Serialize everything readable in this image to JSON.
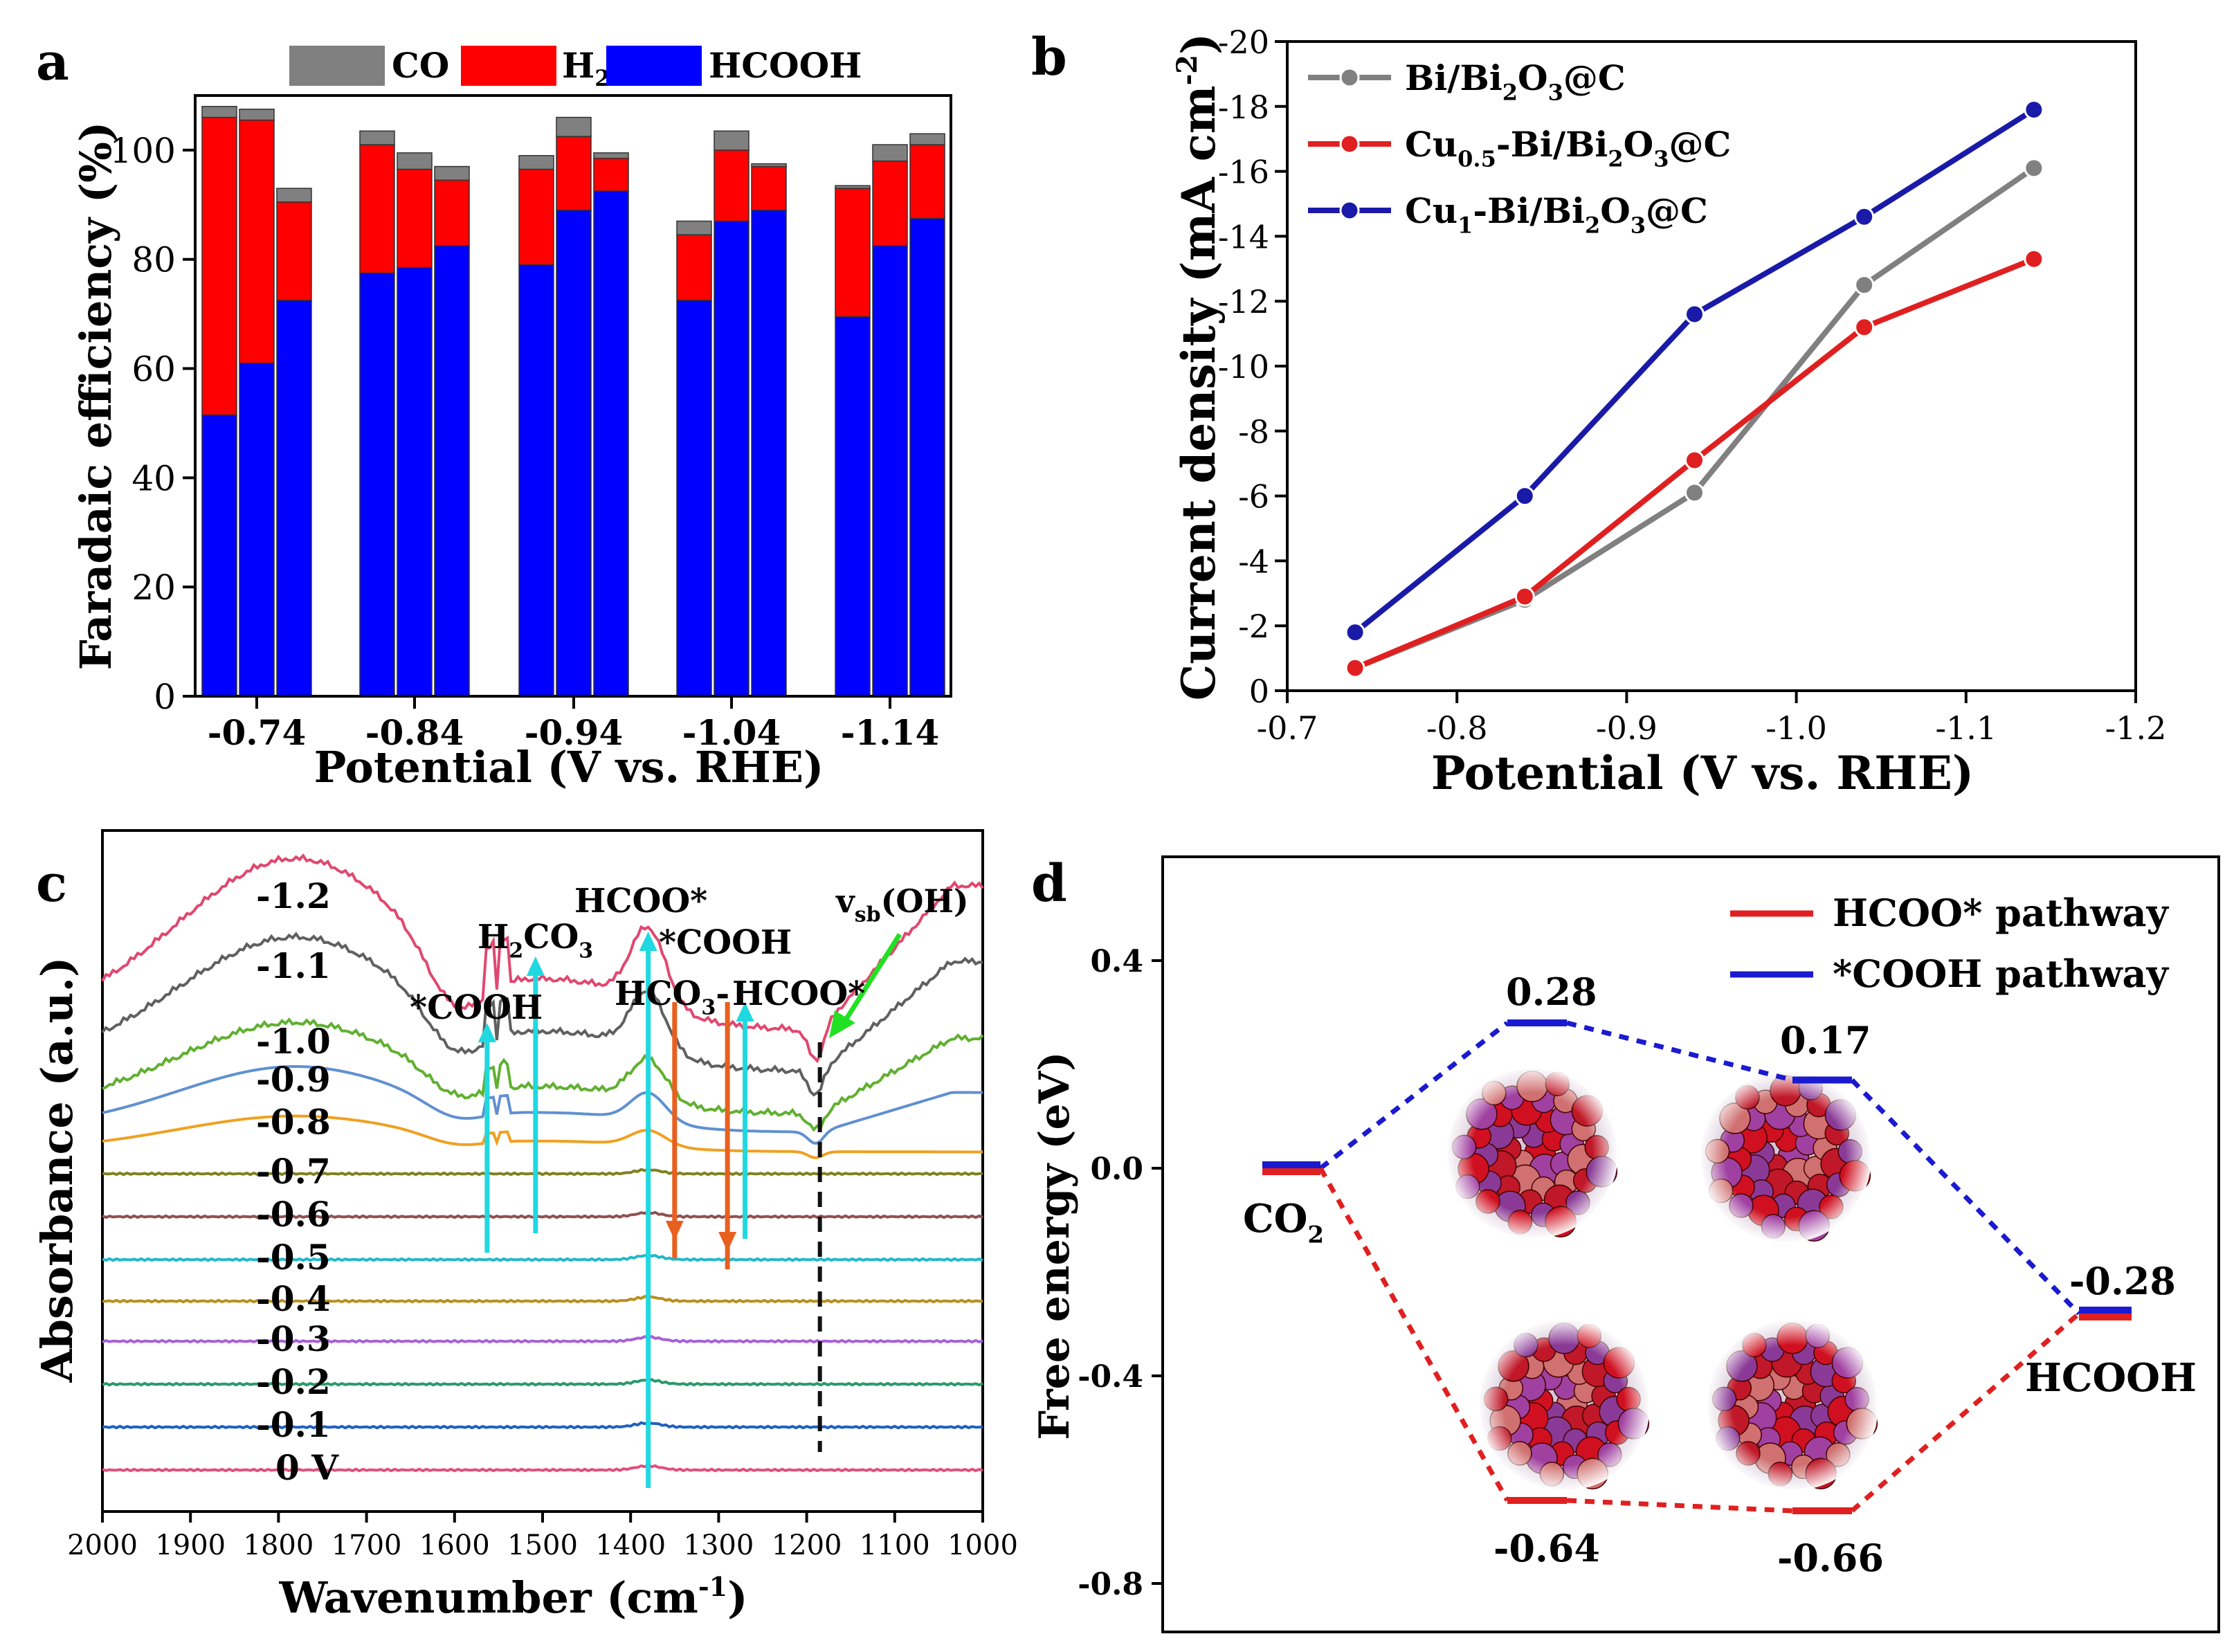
{
  "chart_data": [
    {
      "panel": "a",
      "type": "bar",
      "stacked": true,
      "ylabel": "Faradaic efficiency (%)",
      "xlabel": "Potential (V vs. RHE)",
      "ylim": [
        0,
        110
      ],
      "yticks": [
        "0",
        "20",
        "40",
        "60",
        "80",
        "100"
      ],
      "categories": [
        "-0.74",
        "-0.84",
        "-0.94",
        "-1.04",
        "-1.14"
      ],
      "bars_per_group": 3,
      "legend": {
        "placement": "top",
        "items": [
          {
            "label": "CO",
            "sub": "",
            "color": "#808080"
          },
          {
            "label": "H",
            "sub": "2",
            "color": "#ff0000"
          },
          {
            "label": "HCOOH",
            "sub": "",
            "color": "#0000ff"
          }
        ]
      },
      "series": [
        {
          "name": "HCOOH",
          "color": "#0000ff",
          "values": [
            [
              51.5,
              61,
              72.5
            ],
            [
              77.5,
              78.5,
              82.5
            ],
            [
              79,
              89,
              92.5
            ],
            [
              72.5,
              87,
              89
            ],
            [
              69.5,
              82.5,
              87.5
            ]
          ]
        },
        {
          "name": "H2",
          "color": "#ff0000",
          "values": [
            [
              54.5,
              44.5,
              18
            ],
            [
              23.5,
              18,
              12
            ],
            [
              17.5,
              13.5,
              6
            ],
            [
              12,
              13,
              8
            ],
            [
              23.5,
              15.5,
              13.5
            ]
          ]
        },
        {
          "name": "CO",
          "color": "#808080",
          "values": [
            [
              2,
              2,
              2.5
            ],
            [
              2.5,
              3,
              2.5
            ],
            [
              2.5,
              3.5,
              1
            ],
            [
              2.5,
              3.5,
              0.5
            ],
            [
              0.5,
              3,
              2
            ]
          ]
        }
      ]
    },
    {
      "panel": "b",
      "type": "line",
      "ylabel": "Current density (mA cm",
      "ylabel_sup": "-2",
      "ylabel_end": ")",
      "xlabel": "Potential (V vs. RHE)",
      "x": [
        -0.74,
        -0.84,
        -0.94,
        -1.04,
        -1.14
      ],
      "xlim": [
        -0.7,
        -1.2
      ],
      "xticks": [
        "-0.7",
        "-0.8",
        "-0.9",
        "-1.0",
        "-1.1",
        "-1.2"
      ],
      "ylim": [
        0,
        -20
      ],
      "yticks": [
        "0",
        "-2",
        "-4",
        "-6",
        "-8",
        "-10",
        "-12",
        "-14",
        "-16",
        "-18",
        "-20"
      ],
      "legend_placement": "top-left",
      "series": [
        {
          "name": [
            "Bi/Bi",
            "2",
            "O",
            "3",
            "@C"
          ],
          "color": "#808080",
          "values": [
            -0.7,
            -2.8,
            -6.1,
            -12.5,
            -16.1
          ]
        },
        {
          "name": [
            "Cu",
            "0.5",
            "-Bi/Bi",
            "2",
            "O",
            "3",
            "@C"
          ],
          "color": "#e02020",
          "values": [
            -0.7,
            -2.9,
            -7.1,
            -11.2,
            -13.3
          ]
        },
        {
          "name": [
            "Cu",
            "1",
            "-Bi/Bi",
            "2",
            "O",
            "3",
            "@C"
          ],
          "color": "#1a1aa8",
          "values": [
            -1.8,
            -6.0,
            -11.6,
            -14.6,
            -17.9
          ]
        }
      ]
    },
    {
      "panel": "c",
      "type": "line",
      "ylabel": "Absorbance (a.u.)",
      "xlabel": "Wavenumber (cm",
      "xlabel_sup": "-1",
      "xlabel_end": ")",
      "xlim": [
        2000,
        1000
      ],
      "xticks": [
        "2000",
        "1900",
        "1800",
        "1700",
        "1600",
        "1500",
        "1400",
        "1300",
        "1200",
        "1100",
        "1000"
      ],
      "curve_labels": [
        "0 V",
        "-0.1",
        "-0.2",
        "-0.3",
        "-0.4",
        "-0.5",
        "-0.6",
        "-0.7",
        "-0.8",
        "-0.9",
        "-1.0",
        "-1.1",
        "-1.2"
      ],
      "curve_colors": [
        "#e0507a",
        "#2060c0",
        "#2a9a6a",
        "#a860d8",
        "#b89020",
        "#20b8c8",
        "#905050",
        "#808020",
        "#f0a020",
        "#6090d0",
        "#60b030",
        "#606060",
        "#e04870"
      ],
      "annotations": {
        "cooh_left": "*COOH",
        "h2co3": [
          "H",
          "2",
          "CO",
          "3"
        ],
        "hcoo_top": "HCOO*",
        "cooh_mid": "*COOH",
        "hco3": [
          "HCO",
          "3",
          "-"
        ],
        "hcoo_right": "HCOO*",
        "vsb": [
          "v",
          "sb",
          "(OH)"
        ]
      }
    },
    {
      "panel": "d",
      "type": "line",
      "ylabel": "Free energy (eV)",
      "ylim": [
        -0.8,
        0.4
      ],
      "yticks": [
        "0.4",
        "0.0",
        "-0.4",
        "-0.8"
      ],
      "legend_placement": "top-right",
      "series": [
        {
          "name": "HCOO* pathway",
          "color": "#e02020",
          "values": [
            0,
            -0.64,
            -0.66,
            -0.28
          ]
        },
        {
          "name": "*COOH pathway",
          "color": "#1a1ad0",
          "values": [
            0,
            0.28,
            0.17,
            -0.28
          ]
        }
      ],
      "level_labels": {
        "co2": [
          "CO",
          "2"
        ],
        "hcooh": "HCOOH",
        "v1": "0.28",
        "v2": "0.17",
        "v3": "-0.28",
        "v4": "-0.64",
        "v5": "-0.66"
      }
    }
  ],
  "panel_labels": [
    "a",
    "b",
    "c",
    "d"
  ]
}
